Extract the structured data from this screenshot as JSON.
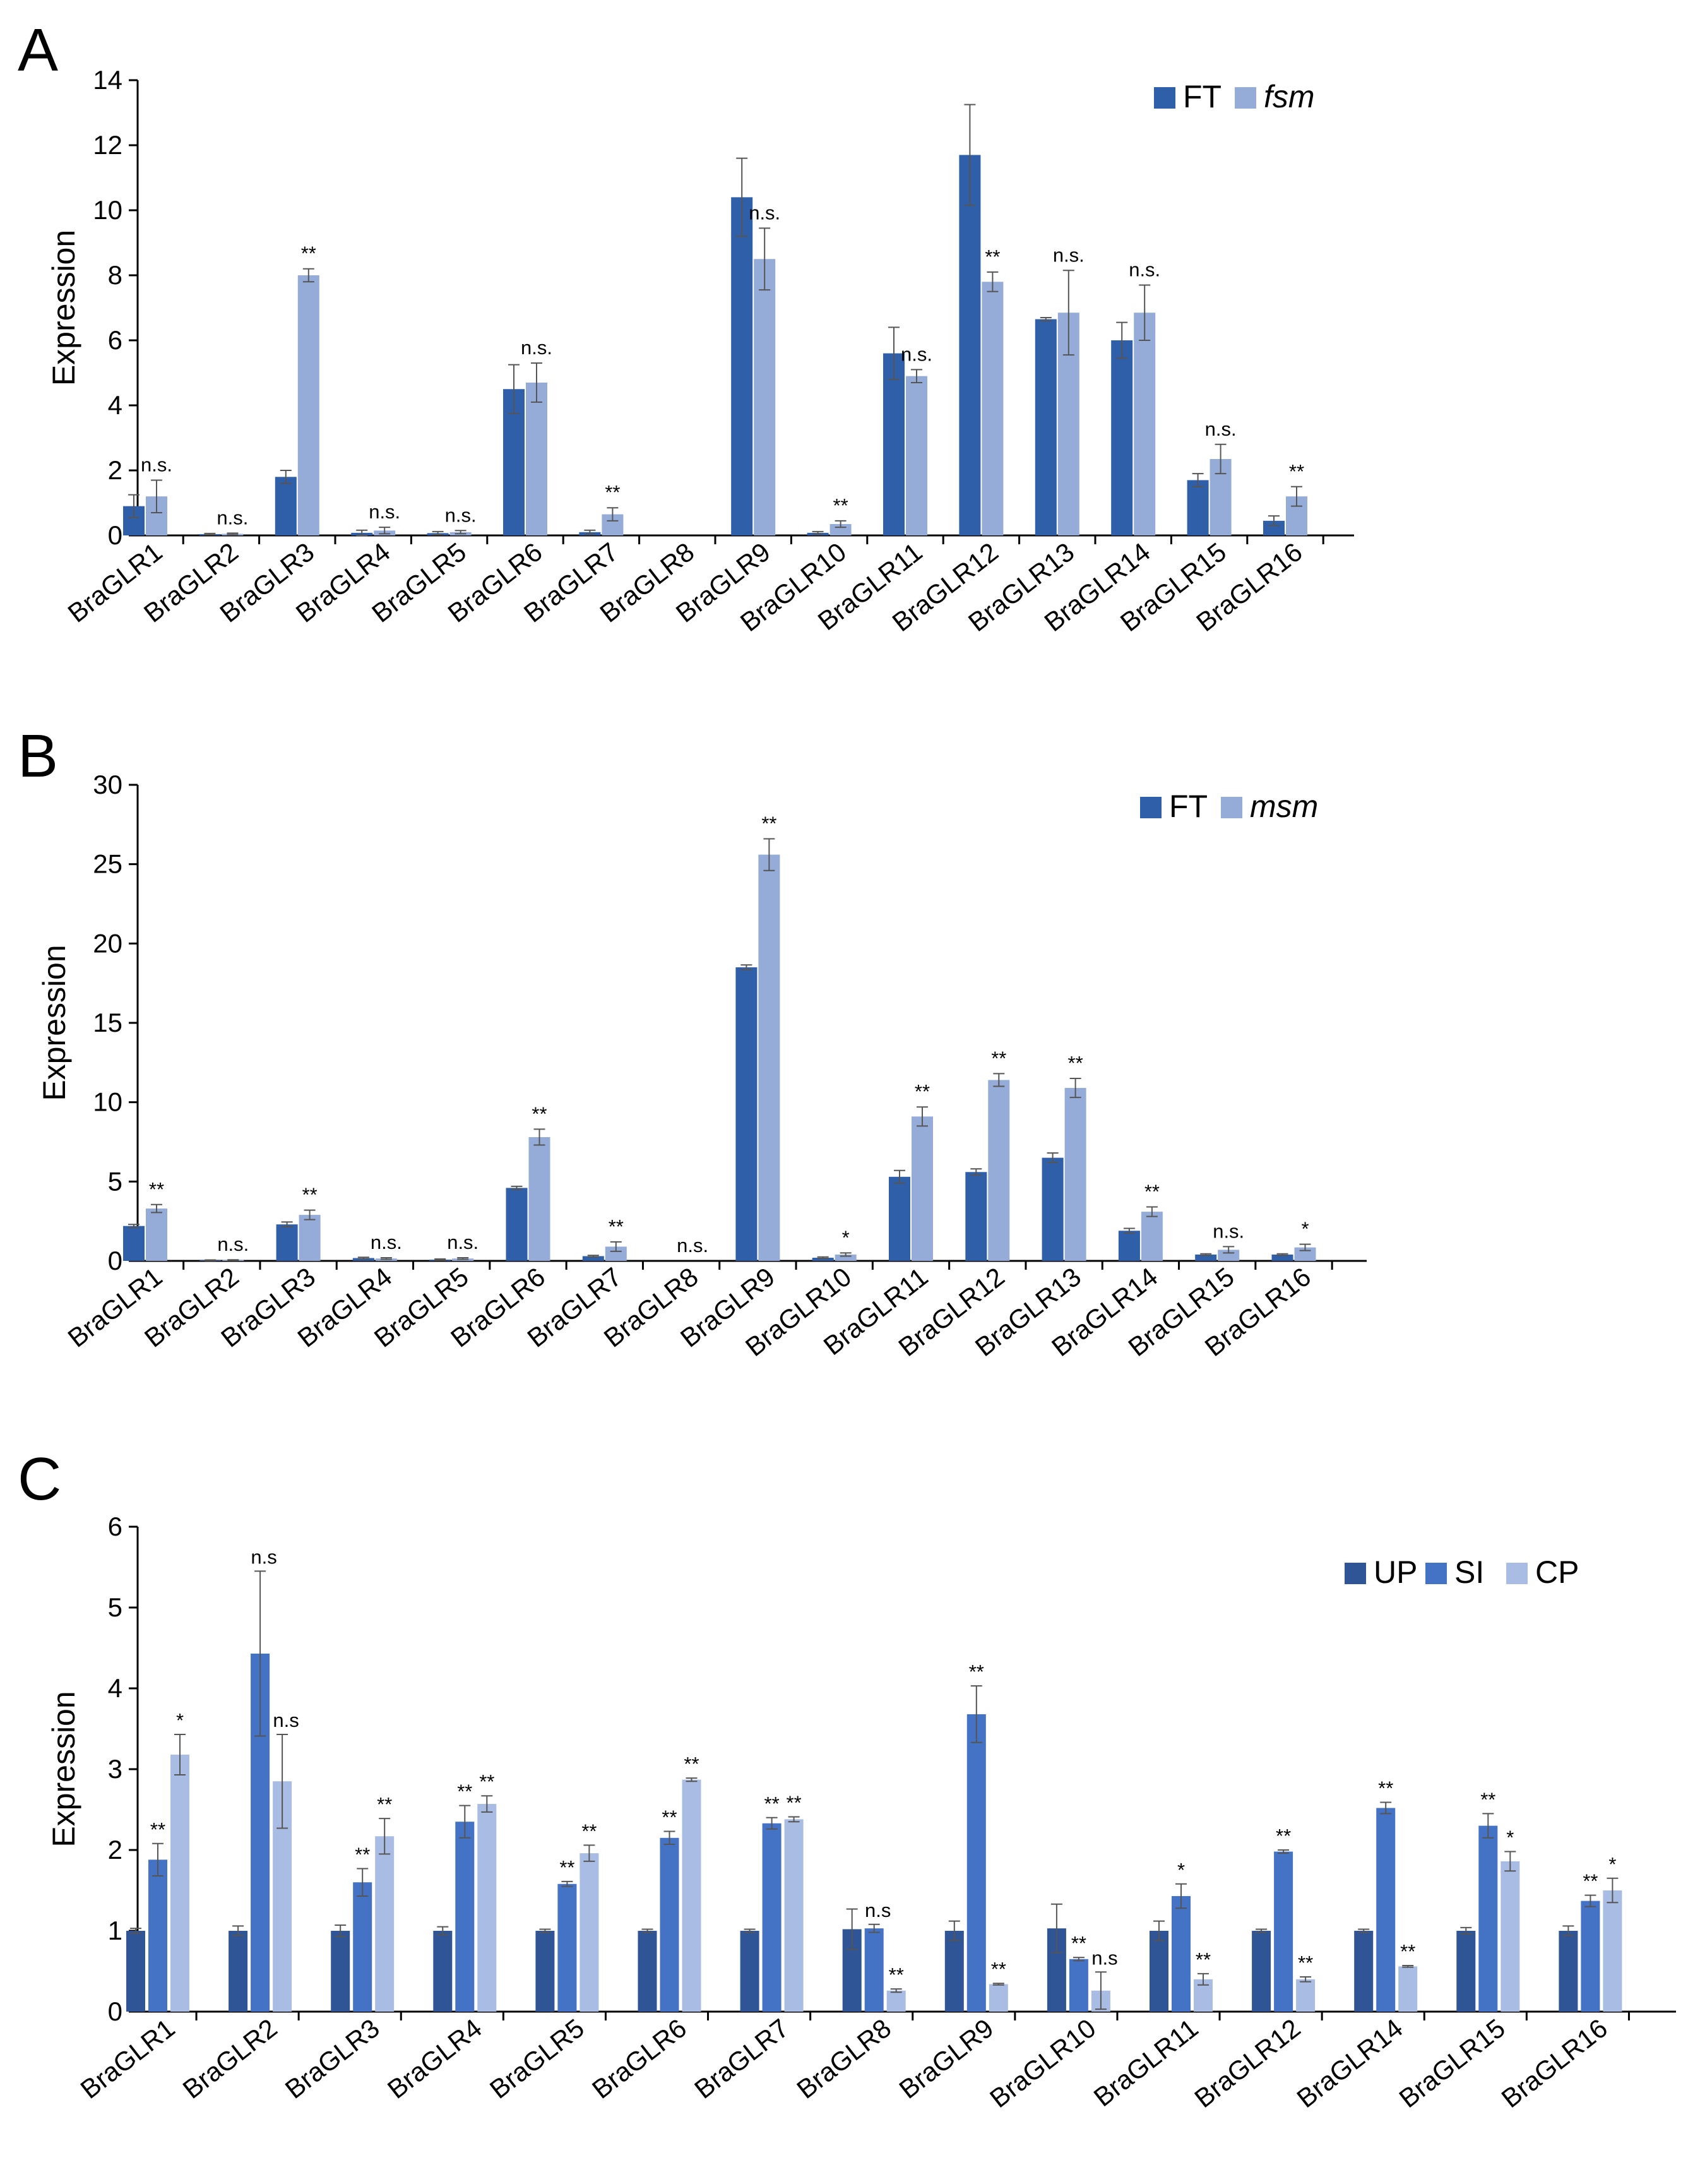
{
  "chart_data": [
    {
      "panel": "A",
      "type": "bar",
      "ylabel": "Expression",
      "xlabel": "",
      "ylim": [
        0,
        14
      ],
      "yticks": [
        0,
        2,
        4,
        6,
        8,
        10,
        12,
        14
      ],
      "categories": [
        "BraGLR1",
        "BraGLR2",
        "BraGLR3",
        "BraGLR4",
        "BraGLR5",
        "BraGLR6",
        "BraGLR7",
        "BraGLR8",
        "BraGLR9",
        "BraGLR10",
        "BraGLR11",
        "BraGLR12",
        "BraGLR13",
        "BraGLR14",
        "BraGLR15",
        "BraGLR16"
      ],
      "legend": {
        "position": "top-right"
      },
      "series": [
        {
          "name": "FT",
          "italic": false,
          "color": "#2F5FA8",
          "values": [
            0.9,
            0.04,
            1.8,
            0.08,
            0.07,
            4.5,
            0.1,
            0,
            10.4,
            0.08,
            5.6,
            11.7,
            6.65,
            6.0,
            1.7,
            0.45
          ],
          "errors": [
            0.35,
            0.02,
            0.2,
            0.08,
            0.05,
            0.75,
            0.06,
            0,
            1.2,
            0.04,
            0.8,
            1.55,
            0.05,
            0.55,
            0.2,
            0.15
          ]
        },
        {
          "name": "fsm",
          "italic": true,
          "color": "#95ACD9",
          "values": [
            1.2,
            0.05,
            8.0,
            0.15,
            0.1,
            4.7,
            0.65,
            0,
            8.5,
            0.35,
            4.9,
            7.8,
            6.85,
            6.85,
            2.35,
            1.2
          ],
          "errors": [
            0.5,
            0.02,
            0.2,
            0.1,
            0.05,
            0.6,
            0.2,
            0,
            0.95,
            0.1,
            0.2,
            0.3,
            1.3,
            0.85,
            0.45,
            0.3
          ]
        }
      ],
      "annotations": [
        "n.s.",
        "n.s.",
        "**",
        "n.s.",
        "n.s.",
        "n.s.",
        "**",
        "",
        "n.s.",
        "**",
        "n.s.",
        "**",
        "n.s.",
        "n.s.",
        "n.s.",
        "**"
      ]
    },
    {
      "panel": "B",
      "type": "bar",
      "ylabel": "Expression",
      "xlabel": "",
      "ylim": [
        0,
        30
      ],
      "yticks": [
        0,
        5,
        10,
        15,
        20,
        25,
        30
      ],
      "categories": [
        "BraGLR1",
        "BraGLR2",
        "BraGLR3",
        "BraGLR4",
        "BraGLR5",
        "BraGLR6",
        "BraGLR7",
        "BraGLR8",
        "BraGLR9",
        "BraGLR10",
        "BraGLR11",
        "BraGLR12",
        "BraGLR13",
        "BraGLR14",
        "BraGLR15",
        "BraGLR16"
      ],
      "legend": {
        "position": "top-right"
      },
      "series": [
        {
          "name": "FT",
          "italic": false,
          "color": "#2F5FA8",
          "values": [
            2.2,
            0.04,
            2.3,
            0.18,
            0.08,
            4.6,
            0.3,
            0,
            18.5,
            0.2,
            5.3,
            5.6,
            6.5,
            1.9,
            0.4,
            0.4
          ],
          "errors": [
            0.1,
            0.02,
            0.15,
            0.05,
            0.04,
            0.1,
            0.05,
            0,
            0.15,
            0.05,
            0.4,
            0.2,
            0.3,
            0.15,
            0.05,
            0.05
          ]
        },
        {
          "name": "msm",
          "italic": true,
          "color": "#95ACD9",
          "values": [
            3.3,
            0.05,
            2.9,
            0.15,
            0.15,
            7.8,
            0.9,
            0,
            25.6,
            0.4,
            9.1,
            11.4,
            10.9,
            3.1,
            0.7,
            0.85
          ],
          "errors": [
            0.25,
            0.02,
            0.3,
            0.05,
            0.05,
            0.5,
            0.3,
            0,
            1.0,
            0.1,
            0.6,
            0.4,
            0.6,
            0.3,
            0.2,
            0.2
          ]
        }
      ],
      "annotations": [
        "**",
        "n.s.",
        "**",
        "n.s.",
        "n.s.",
        "**",
        "**",
        "n.s.",
        "**",
        "*",
        "**",
        "**",
        "**",
        "**",
        "n.s.",
        "*"
      ]
    },
    {
      "panel": "C",
      "type": "bar",
      "ylabel": "Expression",
      "xlabel": "",
      "ylim": [
        0,
        6
      ],
      "yticks": [
        0,
        1,
        2,
        3,
        4,
        5,
        6
      ],
      "categories": [
        "BraGLR1",
        "BraGLR2",
        "BraGLR3",
        "BraGLR4",
        "BraGLR5",
        "BraGLR6",
        "BraGLR7",
        "BraGLR8",
        "BraGLR9",
        "BraGLR10",
        "BraGLR11",
        "BraGLR12",
        "BraGLR14",
        "BraGLR15",
        "BraGLR16"
      ],
      "legend": {
        "position": "top-right"
      },
      "series": [
        {
          "name": "UP",
          "italic": false,
          "color": "#2F5597",
          "values": [
            1.0,
            1.0,
            1.0,
            1.0,
            1.0,
            1.0,
            1.0,
            1.02,
            1.0,
            1.03,
            1.0,
            1.0,
            1.0,
            1.0,
            1.0
          ],
          "errors": [
            0.03,
            0.06,
            0.07,
            0.05,
            0.02,
            0.02,
            0.02,
            0.25,
            0.12,
            0.3,
            0.12,
            0.02,
            0.02,
            0.04,
            0.06
          ]
        },
        {
          "name": "SI",
          "italic": false,
          "color": "#4472C4",
          "values": [
            1.88,
            4.43,
            1.6,
            2.35,
            1.58,
            2.15,
            2.33,
            1.03,
            3.68,
            0.65,
            1.43,
            1.98,
            2.52,
            2.3,
            1.37
          ],
          "errors": [
            0.2,
            1.02,
            0.17,
            0.2,
            0.03,
            0.08,
            0.07,
            0.05,
            0.35,
            0.02,
            0.15,
            0.02,
            0.07,
            0.15,
            0.07
          ]
        },
        {
          "name": "CP",
          "italic": false,
          "color": "#A9BCE3",
          "values": [
            3.18,
            2.85,
            2.17,
            2.57,
            1.96,
            2.87,
            2.38,
            0.26,
            0.34,
            0.26,
            0.4,
            0.4,
            0.56,
            1.86,
            1.5
          ],
          "errors": [
            0.25,
            0.58,
            0.22,
            0.1,
            0.1,
            0.02,
            0.03,
            0.02,
            0.01,
            0.23,
            0.07,
            0.03,
            0.01,
            0.12,
            0.15
          ]
        }
      ],
      "annotations": [
        [
          "",
          "**",
          "*"
        ],
        [
          "",
          "n.s",
          "n.s"
        ],
        [
          "",
          "**",
          "**"
        ],
        [
          "",
          "**",
          "**"
        ],
        [
          "",
          "**",
          "**"
        ],
        [
          "",
          "**",
          "**"
        ],
        [
          "",
          "**",
          "**"
        ],
        [
          "",
          "n.s",
          "**"
        ],
        [
          "",
          "**",
          "**"
        ],
        [
          "",
          "**",
          "n.s"
        ],
        [
          "",
          "*",
          "**"
        ],
        [
          "",
          "**",
          "**"
        ],
        [
          "",
          "**",
          "**"
        ],
        [
          "",
          "**",
          "*"
        ],
        [
          "",
          "**",
          "*"
        ]
      ]
    }
  ]
}
